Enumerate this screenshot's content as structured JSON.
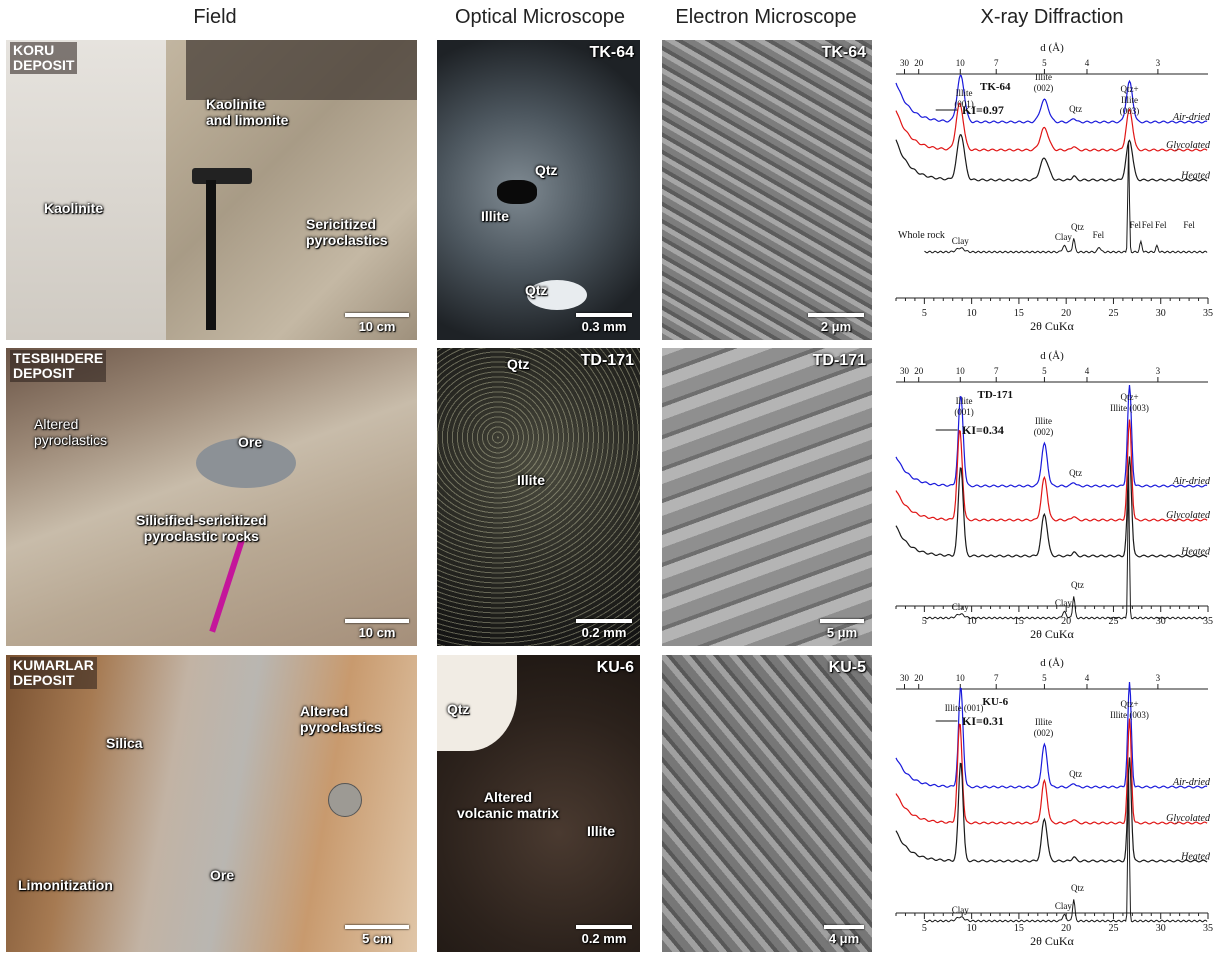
{
  "headers": {
    "field": "Field",
    "optical": "Optical Microscope",
    "electron": "Electron Microscope",
    "xrd": "X-ray Diffraction"
  },
  "rows": [
    {
      "deposit": "KORU\nDEPOSIT",
      "field_labels": [
        "Kaolinite\nand limonite",
        "Kaolinite",
        "Sericitized\npyroclastics"
      ],
      "field_scale": "10 cm",
      "optical_code": "TK-64",
      "optical_labels": [
        "Qtz",
        "Illite",
        "Qtz"
      ],
      "optical_scale": "0.3 mm",
      "sem_code": "TK-64",
      "sem_scale": "2 μm",
      "xrd_sample": "TK-64",
      "ki": "KI=0.97"
    },
    {
      "deposit": "TESBIHDERE\nDEPOSIT",
      "field_labels": [
        "Altered\npyroclastics",
        "Ore",
        "Silicified-sericitized\npyroclastic rocks"
      ],
      "field_scale": "10 cm",
      "optical_code": "TD-171",
      "optical_labels": [
        "Qtz",
        "Illite"
      ],
      "optical_scale": "0.2 mm",
      "sem_code": "TD-171",
      "sem_scale": "5 μm",
      "xrd_sample": "TD-171",
      "ki": "KI=0.34"
    },
    {
      "deposit": "KUMARLAR\nDEPOSIT",
      "field_labels": [
        "Silica",
        "Altered\npyroclastics",
        "Limonitization",
        "Ore"
      ],
      "field_scale": "5 cm",
      "optical_code": "KU-6",
      "optical_labels": [
        "Qtz",
        "Altered\nvolcanic matrix",
        "Illite"
      ],
      "optical_scale": "0.2 mm",
      "sem_code": "KU-5",
      "sem_scale": "4 μm",
      "xrd_sample": "KU-6",
      "ki": "KI=0.31"
    }
  ],
  "xrd": {
    "top_axis_title": "d (Å)",
    "top_ticks": [
      "30",
      "20",
      "10",
      "7",
      "5",
      "4",
      "3"
    ],
    "bottom_ticks": [
      "5",
      "10",
      "15",
      "20",
      "25",
      "30",
      "35"
    ],
    "bottom_axis_title": "2θ CuKα",
    "traces": [
      "Air-dried",
      "Glycolated",
      "Heated"
    ],
    "whole_rock": "Whole rock",
    "peaks": {
      "illite001": "Illite\n(001)",
      "illite001_inline": "Illite (001)",
      "illite002": "Illite\n(002)",
      "qtz": "Qtz",
      "qtz_illite003": "Qtz+\nIllite\n(003)",
      "qtz_illite003_b": "Qtz+\nIllite (003)",
      "clay": "Clay",
      "fel": "Fel"
    },
    "colors": {
      "air": "#1a1adb",
      "gly": "#e01515",
      "heat": "#1a1a1a"
    }
  }
}
